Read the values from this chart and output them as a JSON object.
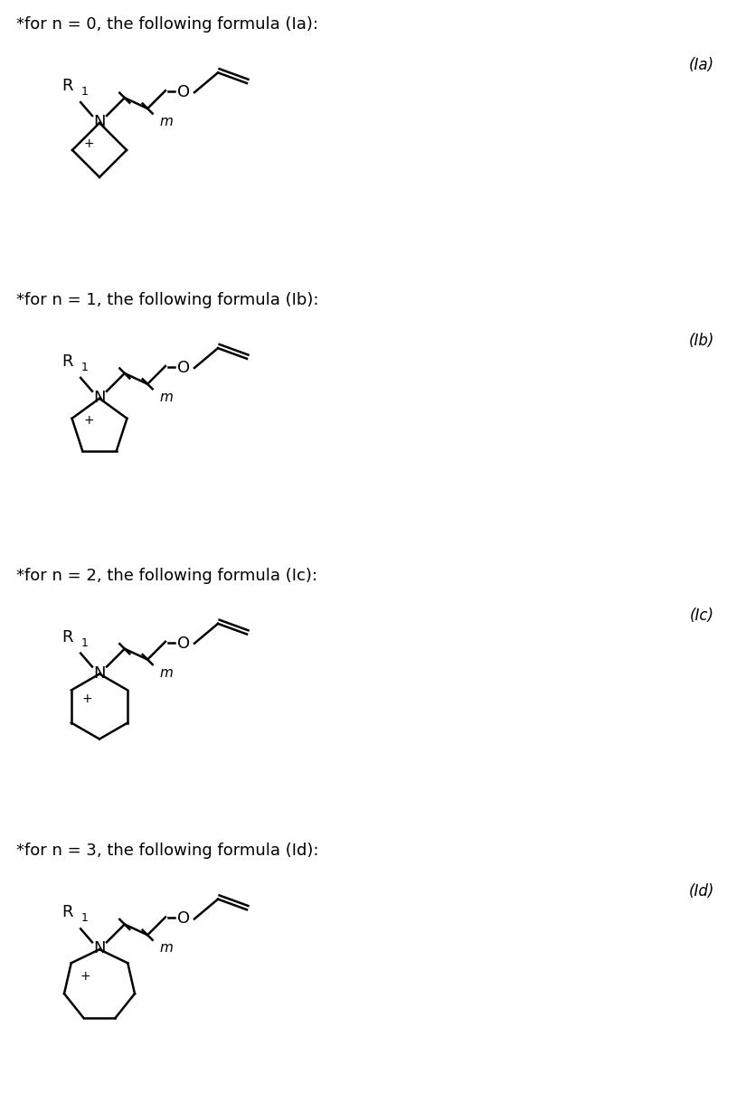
{
  "background_color": "#ffffff",
  "text_color": "#000000",
  "sections": [
    {
      "label": "*for n = 0, the following formula (Ia):",
      "code": "(Ia)",
      "n_sides": 4
    },
    {
      "label": "*for n = 1, the following formula (Ib):",
      "code": "(Ib)",
      "n_sides": 5
    },
    {
      "label": "*for n = 2, the following formula (Ic):",
      "code": "(Ic)",
      "n_sides": 6
    },
    {
      "label": "*for n = 3, the following formula (Id):",
      "code": "(Id)",
      "n_sides": 7
    }
  ],
  "fig_width": 8.25,
  "fig_height": 12.19,
  "lw": 1.8,
  "font_size_label": 13,
  "font_size_code": 12,
  "font_size_atom": 13,
  "font_size_subscript": 9,
  "font_size_m": 11,
  "font_size_plus": 10
}
